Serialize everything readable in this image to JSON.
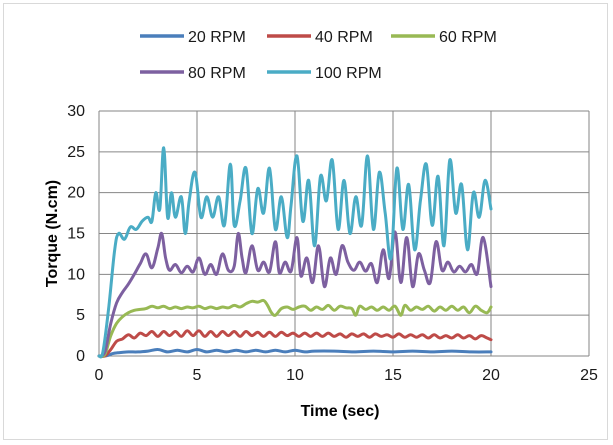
{
  "chart_data": {
    "type": "line",
    "title": "",
    "xlabel": "Time (sec)",
    "ylabel": "Torque (N.cm)",
    "xlim": [
      0,
      25
    ],
    "ylim": [
      0,
      30
    ],
    "x_ticks": [
      0,
      5,
      10,
      15,
      20,
      25
    ],
    "y_ticks": [
      0,
      5,
      10,
      15,
      20,
      25,
      30
    ],
    "grid": "vertical and horizontal major gridlines",
    "legend_position": "top",
    "series": [
      {
        "name": "20 RPM",
        "color": "#4a7ebb",
        "points": [
          [
            0,
            0
          ],
          [
            0.3,
            0
          ],
          [
            0.5,
            0.1
          ],
          [
            0.7,
            0.3
          ],
          [
            1,
            0.4
          ],
          [
            1.5,
            0.5
          ],
          [
            2,
            0.5
          ],
          [
            2.5,
            0.6
          ],
          [
            3,
            0.8
          ],
          [
            3.5,
            0.5
          ],
          [
            4,
            0.7
          ],
          [
            4.5,
            0.5
          ],
          [
            5,
            0.8
          ],
          [
            5.5,
            0.5
          ],
          [
            6,
            0.7
          ],
          [
            6.5,
            0.5
          ],
          [
            7,
            0.7
          ],
          [
            7.5,
            0.5
          ],
          [
            8,
            0.7
          ],
          [
            8.5,
            0.5
          ],
          [
            9,
            0.7
          ],
          [
            9.5,
            0.5
          ],
          [
            10,
            0.7
          ],
          [
            10.5,
            0.5
          ],
          [
            11,
            0.6
          ],
          [
            12,
            0.6
          ],
          [
            13,
            0.5
          ],
          [
            14,
            0.6
          ],
          [
            15,
            0.5
          ],
          [
            16,
            0.6
          ],
          [
            17,
            0.5
          ],
          [
            18,
            0.6
          ],
          [
            19,
            0.5
          ],
          [
            20,
            0.5
          ]
        ]
      },
      {
        "name": "40 RPM",
        "color": "#be4b48",
        "points": [
          [
            0,
            0
          ],
          [
            0.3,
            0
          ],
          [
            0.6,
            0.8
          ],
          [
            0.9,
            1.8
          ],
          [
            1.2,
            2.1
          ],
          [
            1.5,
            2.6
          ],
          [
            1.8,
            2.2
          ],
          [
            2.1,
            2.8
          ],
          [
            2.4,
            2.5
          ],
          [
            2.7,
            3.0
          ],
          [
            3,
            2.4
          ],
          [
            3.3,
            3.0
          ],
          [
            3.6,
            2.5
          ],
          [
            3.9,
            3.0
          ],
          [
            4.2,
            2.4
          ],
          [
            4.5,
            3.1
          ],
          [
            4.8,
            2.5
          ],
          [
            5.1,
            3.1
          ],
          [
            5.4,
            2.4
          ],
          [
            5.7,
            3.0
          ],
          [
            6,
            2.4
          ],
          [
            6.3,
            3.0
          ],
          [
            6.6,
            2.5
          ],
          [
            6.9,
            3.0
          ],
          [
            7.2,
            2.4
          ],
          [
            7.5,
            3.0
          ],
          [
            7.8,
            2.5
          ],
          [
            8.1,
            2.9
          ],
          [
            8.4,
            2.4
          ],
          [
            8.7,
            2.9
          ],
          [
            9,
            2.4
          ],
          [
            9.3,
            2.9
          ],
          [
            9.6,
            2.5
          ],
          [
            9.9,
            2.8
          ],
          [
            10.2,
            2.4
          ],
          [
            10.5,
            2.8
          ],
          [
            10.8,
            2.4
          ],
          [
            11.1,
            2.8
          ],
          [
            11.4,
            2.4
          ],
          [
            11.7,
            2.8
          ],
          [
            12,
            2.4
          ],
          [
            12.3,
            2.7
          ],
          [
            12.6,
            2.3
          ],
          [
            12.9,
            2.7
          ],
          [
            13.2,
            2.4
          ],
          [
            13.5,
            2.7
          ],
          [
            13.8,
            2.3
          ],
          [
            14.1,
            2.7
          ],
          [
            14.4,
            2.4
          ],
          [
            14.7,
            2.6
          ],
          [
            15,
            2.3
          ],
          [
            15.3,
            2.7
          ],
          [
            15.6,
            2.3
          ],
          [
            15.9,
            2.6
          ],
          [
            16.2,
            2.3
          ],
          [
            16.5,
            2.6
          ],
          [
            16.8,
            2.2
          ],
          [
            17.1,
            2.6
          ],
          [
            17.4,
            2.2
          ],
          [
            17.7,
            2.5
          ],
          [
            18,
            2.2
          ],
          [
            18.3,
            2.6
          ],
          [
            18.6,
            2.2
          ],
          [
            18.9,
            2.5
          ],
          [
            19.2,
            2.1
          ],
          [
            19.5,
            2.5
          ],
          [
            19.8,
            2.2
          ],
          [
            20,
            2.0
          ]
        ]
      },
      {
        "name": "60 RPM",
        "color": "#98b954",
        "points": [
          [
            0,
            0
          ],
          [
            0.3,
            0.2
          ],
          [
            0.6,
            2.5
          ],
          [
            0.9,
            4.0
          ],
          [
            1.2,
            4.8
          ],
          [
            1.5,
            5.3
          ],
          [
            1.8,
            5.6
          ],
          [
            2.1,
            5.7
          ],
          [
            2.4,
            5.8
          ],
          [
            2.7,
            6.1
          ],
          [
            3,
            5.9
          ],
          [
            3.3,
            6.1
          ],
          [
            3.6,
            5.8
          ],
          [
            3.9,
            6.0
          ],
          [
            4.2,
            5.8
          ],
          [
            4.5,
            6.0
          ],
          [
            4.8,
            5.9
          ],
          [
            5.1,
            6.1
          ],
          [
            5.4,
            5.8
          ],
          [
            5.7,
            6.0
          ],
          [
            6,
            5.8
          ],
          [
            6.3,
            6.0
          ],
          [
            6.6,
            5.9
          ],
          [
            6.9,
            6.2
          ],
          [
            7.2,
            6.0
          ],
          [
            7.5,
            6.4
          ],
          [
            7.8,
            6.7
          ],
          [
            8.1,
            6.6
          ],
          [
            8.4,
            6.8
          ],
          [
            8.6,
            6.2
          ],
          [
            8.8,
            5.3
          ],
          [
            9.0,
            5.0
          ],
          [
            9.3,
            5.8
          ],
          [
            9.6,
            6.0
          ],
          [
            9.9,
            5.7
          ],
          [
            10.2,
            6.0
          ],
          [
            10.5,
            6.1
          ],
          [
            10.8,
            5.6
          ],
          [
            11.1,
            6.0
          ],
          [
            11.4,
            5.7
          ],
          [
            11.7,
            6.2
          ],
          [
            12,
            5.6
          ],
          [
            12.3,
            6.1
          ],
          [
            12.6,
            5.9
          ],
          [
            12.9,
            5.8
          ],
          [
            13.1,
            5.0
          ],
          [
            13.3,
            6.1
          ],
          [
            13.6,
            5.7
          ],
          [
            13.9,
            6.0
          ],
          [
            14.2,
            5.6
          ],
          [
            14.5,
            6.0
          ],
          [
            14.8,
            5.6
          ],
          [
            15.1,
            6.1
          ],
          [
            15.4,
            5.0
          ],
          [
            15.6,
            6.2
          ],
          [
            15.9,
            5.6
          ],
          [
            16.2,
            6.0
          ],
          [
            16.5,
            5.7
          ],
          [
            16.8,
            6.1
          ],
          [
            17.1,
            5.5
          ],
          [
            17.4,
            6.0
          ],
          [
            17.7,
            5.6
          ],
          [
            18,
            6.1
          ],
          [
            18.3,
            5.6
          ],
          [
            18.6,
            6.0
          ],
          [
            18.9,
            5.3
          ],
          [
            19.2,
            6.1
          ],
          [
            19.5,
            5.6
          ],
          [
            19.8,
            5.3
          ],
          [
            20,
            6.0
          ]
        ]
      },
      {
        "name": "80 RPM",
        "color": "#7d60a0",
        "points": [
          [
            0,
            0
          ],
          [
            0.3,
            0.5
          ],
          [
            0.6,
            4.0
          ],
          [
            0.9,
            6.5
          ],
          [
            1.2,
            7.8
          ],
          [
            1.5,
            8.8
          ],
          [
            1.8,
            10.0
          ],
          [
            2.1,
            11.3
          ],
          [
            2.4,
            12.5
          ],
          [
            2.7,
            10.8
          ],
          [
            3,
            13.2
          ],
          [
            3.2,
            15.0
          ],
          [
            3.4,
            12.0
          ],
          [
            3.6,
            10.5
          ],
          [
            3.9,
            11.2
          ],
          [
            4.2,
            10.2
          ],
          [
            4.5,
            11.0
          ],
          [
            4.8,
            10.3
          ],
          [
            5.1,
            12.0
          ],
          [
            5.4,
            10.0
          ],
          [
            5.7,
            11.2
          ],
          [
            6,
            10.0
          ],
          [
            6.3,
            12.5
          ],
          [
            6.6,
            10.5
          ],
          [
            6.9,
            11.0
          ],
          [
            7.1,
            15.0
          ],
          [
            7.3,
            12.0
          ],
          [
            7.5,
            10.2
          ],
          [
            7.8,
            13.5
          ],
          [
            8.1,
            10.5
          ],
          [
            8.4,
            11.5
          ],
          [
            8.7,
            10.3
          ],
          [
            9,
            14.0
          ],
          [
            9.2,
            10.2
          ],
          [
            9.5,
            11.5
          ],
          [
            9.8,
            10.4
          ],
          [
            10.1,
            14.5
          ],
          [
            10.3,
            9.8
          ],
          [
            10.6,
            12.0
          ],
          [
            10.9,
            9.0
          ],
          [
            11.2,
            13.5
          ],
          [
            11.5,
            8.5
          ],
          [
            11.8,
            12.0
          ],
          [
            12.1,
            10.0
          ],
          [
            12.4,
            13.5
          ],
          [
            12.7,
            11.5
          ],
          [
            13,
            10.5
          ],
          [
            13.3,
            11.5
          ],
          [
            13.6,
            10.4
          ],
          [
            13.9,
            11.3
          ],
          [
            14.2,
            9.0
          ],
          [
            14.5,
            13.0
          ],
          [
            14.8,
            9.5
          ],
          [
            15.1,
            15.2
          ],
          [
            15.4,
            9.0
          ],
          [
            15.7,
            14.5
          ],
          [
            16,
            8.5
          ],
          [
            16.3,
            12.5
          ],
          [
            16.6,
            10.5
          ],
          [
            16.9,
            9.0
          ],
          [
            17.2,
            14.0
          ],
          [
            17.5,
            10.5
          ],
          [
            17.8,
            11.5
          ],
          [
            18.1,
            10.3
          ],
          [
            18.4,
            11.0
          ],
          [
            18.7,
            10.3
          ],
          [
            19,
            11.2
          ],
          [
            19.3,
            10.1
          ],
          [
            19.6,
            14.5
          ],
          [
            20,
            8.5
          ]
        ]
      },
      {
        "name": "100 RPM",
        "color": "#4aacc5",
        "points": [
          [
            0,
            0
          ],
          [
            0.2,
            0.5
          ],
          [
            0.5,
            6.0
          ],
          [
            0.8,
            13.0
          ],
          [
            1.0,
            15.0
          ],
          [
            1.3,
            14.3
          ],
          [
            1.6,
            15.8
          ],
          [
            1.9,
            15.5
          ],
          [
            2.2,
            16.5
          ],
          [
            2.5,
            17.0
          ],
          [
            2.7,
            16.5
          ],
          [
            2.9,
            20.0
          ],
          [
            3.1,
            18.0
          ],
          [
            3.3,
            25.5
          ],
          [
            3.5,
            17.0
          ],
          [
            3.7,
            20.0
          ],
          [
            3.9,
            17.0
          ],
          [
            4.2,
            19.5
          ],
          [
            4.4,
            15.0
          ],
          [
            4.6,
            19.0
          ],
          [
            4.9,
            22.5
          ],
          [
            5.2,
            17.0
          ],
          [
            5.5,
            19.5
          ],
          [
            5.8,
            17.0
          ],
          [
            6.1,
            19.5
          ],
          [
            6.4,
            16.0
          ],
          [
            6.7,
            23.5
          ],
          [
            6.9,
            16.0
          ],
          [
            7.2,
            19.0
          ],
          [
            7.5,
            23.0
          ],
          [
            7.8,
            15.0
          ],
          [
            8.1,
            20.5
          ],
          [
            8.4,
            17.5
          ],
          [
            8.7,
            23.0
          ],
          [
            9.0,
            15.5
          ],
          [
            9.3,
            19.5
          ],
          [
            9.6,
            14.5
          ],
          [
            9.8,
            18.5
          ],
          [
            10.1,
            24.5
          ],
          [
            10.4,
            16.5
          ],
          [
            10.7,
            21.5
          ],
          [
            11.0,
            13.5
          ],
          [
            11.3,
            22.0
          ],
          [
            11.6,
            19.0
          ],
          [
            11.9,
            24.0
          ],
          [
            12.2,
            15.5
          ],
          [
            12.5,
            21.5
          ],
          [
            12.8,
            15.0
          ],
          [
            13.1,
            19.5
          ],
          [
            13.4,
            16.0
          ],
          [
            13.7,
            24.5
          ],
          [
            14.0,
            15.5
          ],
          [
            14.3,
            22.5
          ],
          [
            14.6,
            17.5
          ],
          [
            14.9,
            12.0
          ],
          [
            15.2,
            23.0
          ],
          [
            15.5,
            15.5
          ],
          [
            15.8,
            21.0
          ],
          [
            16.1,
            13.0
          ],
          [
            16.4,
            19.0
          ],
          [
            16.7,
            23.5
          ],
          [
            17.0,
            16.0
          ],
          [
            17.3,
            22.0
          ],
          [
            17.6,
            13.5
          ],
          [
            17.9,
            24.0
          ],
          [
            18.2,
            17.5
          ],
          [
            18.5,
            21.0
          ],
          [
            18.8,
            13.0
          ],
          [
            19.1,
            20.0
          ],
          [
            19.4,
            17.0
          ],
          [
            19.7,
            21.5
          ],
          [
            20,
            18.0
          ]
        ]
      }
    ]
  }
}
